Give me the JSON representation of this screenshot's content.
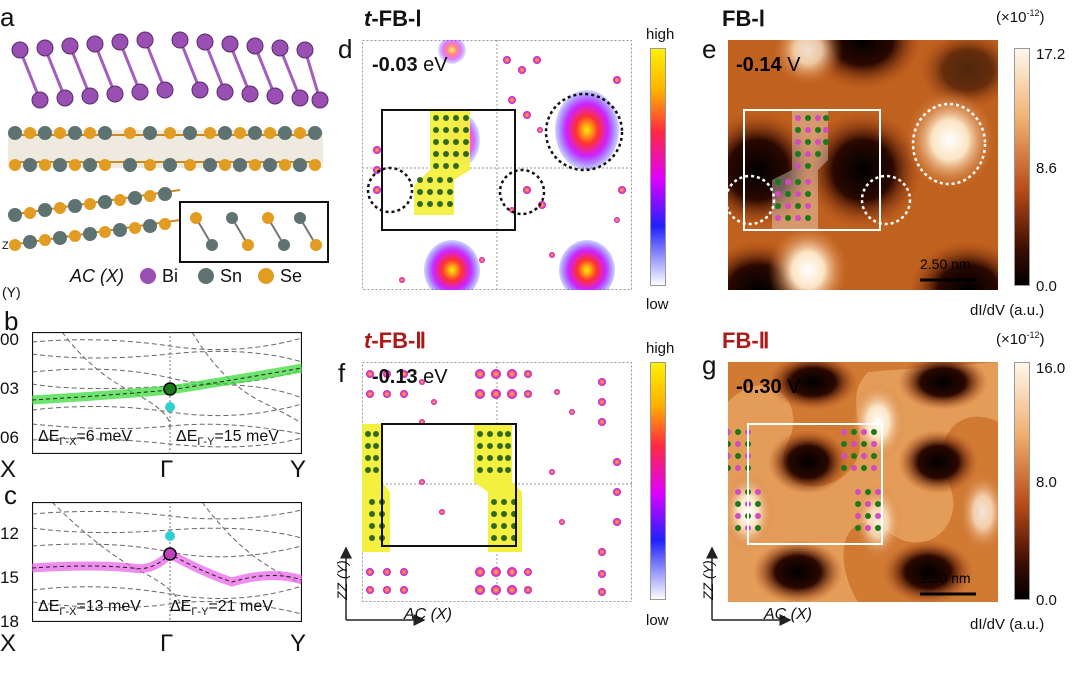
{
  "panels": {
    "a": {
      "label": "a",
      "axis_label": "AC (X)",
      "axis_label2": "(Y)",
      "axis_label3": "Z",
      "legend": [
        {
          "name": "Bi",
          "color": "#9a4fb2"
        },
        {
          "name": "Sn",
          "color": "#5f7272"
        },
        {
          "name": "Se",
          "color": "#e39c22"
        }
      ]
    },
    "b": {
      "label": "b",
      "y_ticks": [
        "00",
        "03",
        "06"
      ],
      "k_labels": [
        "X",
        "Γ",
        "Y"
      ],
      "delta_left": "ΔE",
      "delta_left_sub": "Γ-X",
      "delta_left_val": "=6 meV",
      "delta_right": "ΔE",
      "delta_right_sub": "Γ-Y",
      "delta_right_val": "=15 meV",
      "band_color": "#3ed93e"
    },
    "c": {
      "label": "c",
      "y_ticks": [
        "12",
        "15",
        "18"
      ],
      "k_labels": [
        "X",
        "Γ",
        "Y"
      ],
      "delta_left": "ΔE",
      "delta_left_sub": "Γ-X",
      "delta_left_val": "=13 meV",
      "delta_right": "ΔE",
      "delta_right_sub": "Γ-Y",
      "delta_right_val": "=21 meV",
      "band_color": "#e85ce8"
    },
    "d": {
      "label": "d",
      "title_prefix": "t",
      "title": "-FB-Ⅰ",
      "energy_value": "-0.03",
      "energy_unit": "eV",
      "colorbar_high": "high",
      "colorbar_low": "low"
    },
    "e": {
      "label": "e",
      "title": "FB-Ⅰ",
      "bias_value": "-0.14",
      "bias_unit": "V",
      "scale_bar": "2.50 nm",
      "colorbar_exp": "(×10",
      "colorbar_exp_sup": "-12",
      "colorbar_exp_end": ")",
      "colorbar_ticks": [
        "17.2",
        "8.6",
        "0.0"
      ],
      "colorbar_unit": "dI/dV (a.u.)"
    },
    "f": {
      "label": "f",
      "title_prefix": "t",
      "title": "-FB-Ⅱ",
      "energy_value": "-0.13",
      "energy_unit": "eV",
      "colorbar_high": "high",
      "colorbar_low": "low",
      "axis_x": "AC (X)",
      "axis_y": "ZZ (Y)"
    },
    "g": {
      "label": "g",
      "title": "FB-Ⅱ",
      "bias_value": "-0.30",
      "bias_unit": "V",
      "scale_bar": "2.50 nm",
      "colorbar_exp": "(×10",
      "colorbar_exp_sup": "-12",
      "colorbar_exp_end": ")",
      "colorbar_ticks": [
        "16.0",
        "8.0",
        "0.0"
      ],
      "colorbar_unit": "dI/dV (a.u.)",
      "axis_x": "AC (X)",
      "axis_y": "ZZ (Y)"
    }
  }
}
